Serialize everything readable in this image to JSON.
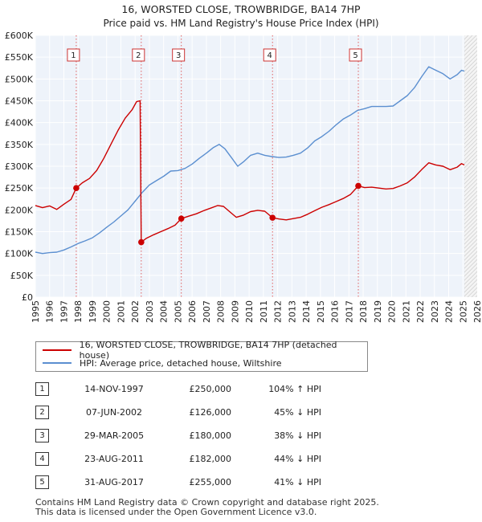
{
  "chart_data": {
    "type": "line",
    "title": "16, WORSTED CLOSE, TROWBRIDGE, BA14 7HP",
    "subtitle": "Price paid vs. HM Land Registry's House Price Index (HPI)",
    "xlim": [
      1995,
      2026
    ],
    "ylim": [
      0,
      600000
    ],
    "x_ticks": [
      "1995",
      "1996",
      "1997",
      "1998",
      "1999",
      "2000",
      "2001",
      "2002",
      "2003",
      "2004",
      "2005",
      "2006",
      "2007",
      "2008",
      "2009",
      "2010",
      "2011",
      "2012",
      "2013",
      "2014",
      "2015",
      "2016",
      "2017",
      "2018",
      "2019",
      "2020",
      "2021",
      "2022",
      "2023",
      "2024",
      "2025",
      "2026"
    ],
    "y_ticks": [
      {
        "value": 0,
        "label": "£0"
      },
      {
        "value": 50000,
        "label": "£50K"
      },
      {
        "value": 100000,
        "label": "£100K"
      },
      {
        "value": 150000,
        "label": "£150K"
      },
      {
        "value": 200000,
        "label": "£200K"
      },
      {
        "value": 250000,
        "label": "£250K"
      },
      {
        "value": 300000,
        "label": "£300K"
      },
      {
        "value": 350000,
        "label": "£350K"
      },
      {
        "value": 400000,
        "label": "£400K"
      },
      {
        "value": 450000,
        "label": "£450K"
      },
      {
        "value": 500000,
        "label": "£500K"
      },
      {
        "value": 550000,
        "label": "£550K"
      },
      {
        "value": 600000,
        "label": "£600K"
      }
    ],
    "grid": true,
    "series": [
      {
        "name": "16, WORSTED CLOSE, TROWBRIDGE, BA14 7HP (detached house)",
        "color": "#cc0000",
        "points": [
          [
            1995.0,
            210000
          ],
          [
            1995.5,
            205000
          ],
          [
            1996.0,
            209000
          ],
          [
            1996.5,
            201000
          ],
          [
            1997.0,
            213000
          ],
          [
            1997.5,
            224000
          ],
          [
            1997.87,
            250000
          ],
          [
            1998.3,
            262000
          ],
          [
            1998.8,
            272000
          ],
          [
            1999.3,
            290000
          ],
          [
            1999.8,
            318000
          ],
          [
            2000.3,
            350000
          ],
          [
            2000.8,
            382000
          ],
          [
            2001.3,
            410000
          ],
          [
            2001.8,
            430000
          ],
          [
            2002.1,
            448000
          ],
          [
            2002.35,
            450000
          ],
          [
            2002.43,
            126000
          ],
          [
            2002.8,
            135000
          ],
          [
            2003.3,
            143000
          ],
          [
            2003.8,
            150000
          ],
          [
            2004.3,
            157000
          ],
          [
            2004.8,
            165000
          ],
          [
            2005.24,
            180000
          ],
          [
            2005.8,
            186000
          ],
          [
            2006.3,
            191000
          ],
          [
            2006.8,
            198000
          ],
          [
            2007.3,
            204000
          ],
          [
            2007.8,
            210000
          ],
          [
            2008.2,
            208000
          ],
          [
            2008.7,
            194000
          ],
          [
            2009.1,
            183000
          ],
          [
            2009.6,
            188000
          ],
          [
            2010.1,
            196000
          ],
          [
            2010.6,
            199000
          ],
          [
            2011.1,
            197000
          ],
          [
            2011.64,
            182000
          ],
          [
            2012.1,
            179000
          ],
          [
            2012.6,
            177000
          ],
          [
            2013.1,
            180000
          ],
          [
            2013.6,
            183000
          ],
          [
            2014.1,
            190000
          ],
          [
            2014.6,
            198000
          ],
          [
            2015.1,
            206000
          ],
          [
            2015.6,
            212000
          ],
          [
            2016.1,
            219000
          ],
          [
            2016.6,
            226000
          ],
          [
            2017.1,
            235000
          ],
          [
            2017.66,
            255000
          ],
          [
            2018.1,
            251000
          ],
          [
            2018.6,
            252000
          ],
          [
            2019.1,
            250000
          ],
          [
            2019.6,
            248000
          ],
          [
            2020.1,
            249000
          ],
          [
            2020.6,
            255000
          ],
          [
            2021.1,
            262000
          ],
          [
            2021.6,
            275000
          ],
          [
            2022.1,
            292000
          ],
          [
            2022.6,
            308000
          ],
          [
            2023.1,
            303000
          ],
          [
            2023.6,
            300000
          ],
          [
            2024.1,
            292000
          ],
          [
            2024.6,
            298000
          ],
          [
            2024.9,
            306000
          ],
          [
            2025.1,
            303000
          ]
        ]
      },
      {
        "name": "HPI: Average price, detached house, Wiltshire",
        "color": "#5b8fd0",
        "points": [
          [
            1995.0,
            103000
          ],
          [
            1995.5,
            100000
          ],
          [
            1996.0,
            102000
          ],
          [
            1996.5,
            103000
          ],
          [
            1997.0,
            108000
          ],
          [
            1997.5,
            115000
          ],
          [
            1998.0,
            123000
          ],
          [
            1998.5,
            129000
          ],
          [
            1999.0,
            136000
          ],
          [
            1999.5,
            147000
          ],
          [
            2000.0,
            160000
          ],
          [
            2000.5,
            172000
          ],
          [
            2001.0,
            186000
          ],
          [
            2001.5,
            200000
          ],
          [
            2002.0,
            220000
          ],
          [
            2002.5,
            240000
          ],
          [
            2003.0,
            257000
          ],
          [
            2003.5,
            267000
          ],
          [
            2004.0,
            277000
          ],
          [
            2004.5,
            289000
          ],
          [
            2005.0,
            290000
          ],
          [
            2005.5,
            295000
          ],
          [
            2006.0,
            305000
          ],
          [
            2006.5,
            318000
          ],
          [
            2007.0,
            330000
          ],
          [
            2007.5,
            343000
          ],
          [
            2007.9,
            350000
          ],
          [
            2008.3,
            340000
          ],
          [
            2008.8,
            318000
          ],
          [
            2009.2,
            300000
          ],
          [
            2009.6,
            310000
          ],
          [
            2010.1,
            325000
          ],
          [
            2010.6,
            330000
          ],
          [
            2011.1,
            325000
          ],
          [
            2011.6,
            322000
          ],
          [
            2012.1,
            320000
          ],
          [
            2012.6,
            321000
          ],
          [
            2013.1,
            325000
          ],
          [
            2013.6,
            330000
          ],
          [
            2014.1,
            342000
          ],
          [
            2014.6,
            358000
          ],
          [
            2015.1,
            368000
          ],
          [
            2015.6,
            380000
          ],
          [
            2016.1,
            395000
          ],
          [
            2016.6,
            408000
          ],
          [
            2017.1,
            417000
          ],
          [
            2017.6,
            428000
          ],
          [
            2018.1,
            432000
          ],
          [
            2018.6,
            437000
          ],
          [
            2019.1,
            437000
          ],
          [
            2019.6,
            437000
          ],
          [
            2020.1,
            438000
          ],
          [
            2020.6,
            450000
          ],
          [
            2021.1,
            462000
          ],
          [
            2021.6,
            480000
          ],
          [
            2022.1,
            505000
          ],
          [
            2022.6,
            528000
          ],
          [
            2023.1,
            520000
          ],
          [
            2023.6,
            512000
          ],
          [
            2024.1,
            500000
          ],
          [
            2024.6,
            510000
          ],
          [
            2024.9,
            520000
          ],
          [
            2025.1,
            518000
          ]
        ]
      }
    ],
    "sales": [
      {
        "n": "1",
        "x": 1997.87,
        "price": 250000
      },
      {
        "n": "2",
        "x": 2002.43,
        "price": 126000
      },
      {
        "n": "3",
        "x": 2005.24,
        "price": 180000
      },
      {
        "n": "4",
        "x": 2011.64,
        "price": 182000
      },
      {
        "n": "5",
        "x": 2017.66,
        "price": 255000
      }
    ],
    "forecast_start": 2025.1
  },
  "legend": {
    "property": "16, WORSTED CLOSE, TROWBRIDGE, BA14 7HP (detached house)",
    "hpi": "HPI: Average price, detached house, Wiltshire"
  },
  "table": [
    {
      "n": "1",
      "date": "14-NOV-1997",
      "price": "£250,000",
      "hpi": "104% ↑ HPI"
    },
    {
      "n": "2",
      "date": "07-JUN-2002",
      "price": "£126,000",
      "hpi": "45% ↓ HPI"
    },
    {
      "n": "3",
      "date": "29-MAR-2005",
      "price": "£180,000",
      "hpi": "38% ↓ HPI"
    },
    {
      "n": "4",
      "date": "23-AUG-2011",
      "price": "£182,000",
      "hpi": "44% ↓ HPI"
    },
    {
      "n": "5",
      "date": "31-AUG-2017",
      "price": "£255,000",
      "hpi": "41% ↓ HPI"
    }
  ],
  "footer": {
    "line1": "Contains HM Land Registry data © Crown copyright and database right 2025.",
    "line2": "This data is licensed under the Open Government Licence v3.0."
  }
}
